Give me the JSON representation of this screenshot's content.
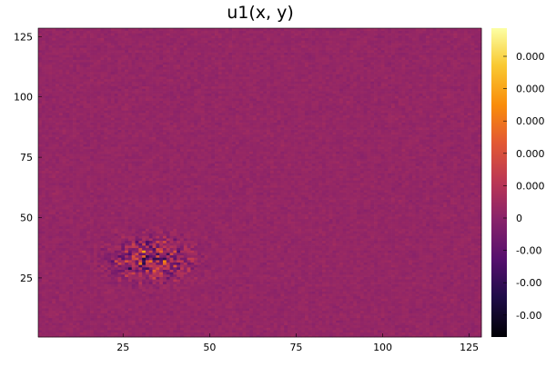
{
  "chart_data": {
    "type": "heatmap",
    "title": "u1(x, y)",
    "xlabel": "",
    "ylabel": "",
    "x_range": [
      1,
      128
    ],
    "y_range": [
      1,
      128
    ],
    "xticks": [
      "25",
      "50",
      "75",
      "100",
      "125"
    ],
    "yticks": [
      "25",
      "50",
      "75",
      "100",
      "125"
    ],
    "colorbar_ticks": [
      "0.000",
      "0.000",
      "0.000",
      "0.000",
      "0.000",
      "0",
      "-0.00",
      "-0.00",
      "-0.00"
    ],
    "colormap": "inferno",
    "background_level": 0.0,
    "hotspot": {
      "center_x": 33,
      "center_y": 33,
      "extent_x": [
        18,
        48
      ],
      "extent_y": [
        22,
        44
      ]
    },
    "grid": false
  }
}
